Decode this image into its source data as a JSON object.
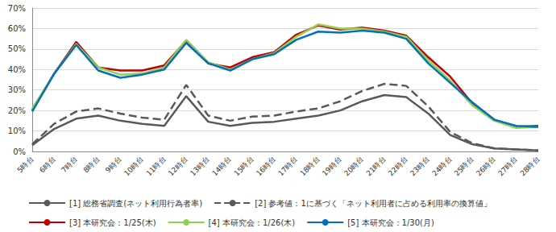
{
  "chart_data": {
    "type": "line",
    "categories": [
      "5時台",
      "6時台",
      "7時台",
      "8時台",
      "9時台",
      "10時台",
      "11時台",
      "12時台",
      "13時台",
      "14時台",
      "15時台",
      "16時台",
      "17時台",
      "18時台",
      "19時台",
      "20時台",
      "21時台",
      "22時台",
      "23時台",
      "24時台",
      "25時台",
      "26時台",
      "27時台",
      "28時台"
    ],
    "series": [
      {
        "name": "[1] 総務省調査(ネット利用行為者率)",
        "color": "#595959",
        "line_style": "solid",
        "values": [
          3,
          11,
          16,
          17.5,
          15,
          13.5,
          12.5,
          27,
          14.5,
          12.5,
          14,
          14.5,
          16,
          17.5,
          20,
          24.5,
          27.5,
          26.5,
          18.5,
          8,
          3.5,
          1.5,
          1,
          0.5
        ]
      },
      {
        "name": "[2] 参考値：1に基づく「ネット利用者に占める利用率の換算値」",
        "color": "#595959",
        "line_style": "dashed",
        "values": [
          3.5,
          13.5,
          19.5,
          21,
          18.5,
          16.5,
          15.5,
          32.5,
          17.5,
          15,
          17,
          17.5,
          19.5,
          21,
          24.5,
          29.5,
          33,
          32,
          22,
          9.5,
          4,
          1.5,
          1,
          0.5
        ]
      },
      {
        "name": "[3] 本研究会：1/25(木)",
        "color": "#c00000",
        "line_style": "solid",
        "values": [
          20,
          38,
          53.5,
          41,
          39.5,
          39.5,
          42,
          54,
          43,
          41,
          46,
          48.5,
          57,
          61.5,
          59.5,
          60.5,
          59,
          56.5,
          46,
          36.5,
          23.5,
          15.5,
          12,
          12.5
        ]
      },
      {
        "name": "[4] 本研究会：1/26(木)",
        "color": "#92d050",
        "line_style": "solid",
        "values": [
          21,
          38,
          52.5,
          41,
          37.5,
          38,
          41,
          54.5,
          43.5,
          40,
          45,
          48,
          56,
          62,
          60,
          60,
          58.5,
          56,
          44.5,
          34.5,
          22.5,
          15,
          11.5,
          12
        ]
      },
      {
        "name": "[5] 本研究会：1/30(月)",
        "color": "#0070c0",
        "line_style": "solid",
        "values": [
          19.5,
          38,
          52,
          39.5,
          36,
          37.5,
          40,
          53,
          43,
          39.5,
          45,
          47.5,
          54.5,
          58.5,
          58,
          59,
          58,
          55,
          43,
          33.5,
          24,
          15.5,
          12.5,
          12
        ]
      }
    ],
    "ylim": [
      0,
      70
    ],
    "yticks": [
      {
        "value": 0,
        "label": "0%"
      },
      {
        "value": 10,
        "label": "10%"
      },
      {
        "value": 20,
        "label": "20%"
      },
      {
        "value": 30,
        "label": "30%"
      },
      {
        "value": 40,
        "label": "40%"
      },
      {
        "value": 50,
        "label": "50%"
      },
      {
        "value": 60,
        "label": "60%"
      },
      {
        "value": 70,
        "label": "70%"
      }
    ],
    "grid": true,
    "legend": "bottom"
  }
}
